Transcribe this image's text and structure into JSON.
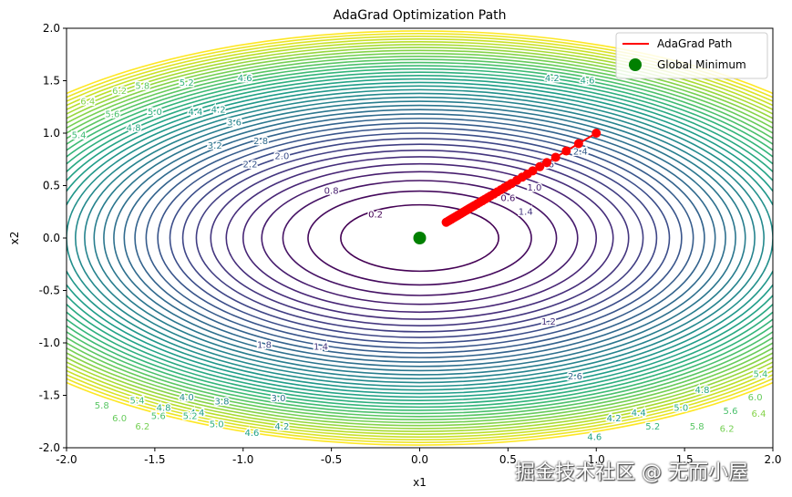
{
  "chart_data": {
    "type": "contour",
    "title": "AdaGrad Optimization Path",
    "xlabel": "x1",
    "ylabel": "x2",
    "xlim": [
      -2.0,
      2.0
    ],
    "ylim": [
      -2.0,
      2.0
    ],
    "xticks": [
      "-2.0",
      "-1.5",
      "-1.0",
      "-0.5",
      "0.0",
      "0.5",
      "1.0",
      "1.5",
      "2.0"
    ],
    "yticks": [
      "-2.0",
      "-1.5",
      "-1.0",
      "-0.5",
      "0.0",
      "0.5",
      "1.0",
      "1.5",
      "2.0"
    ],
    "contour_function": "x1^2 + 2*x2^2",
    "contour_levels": [
      0.2,
      0.4,
      0.6,
      0.8,
      1.0,
      1.2,
      1.4,
      1.6,
      1.8,
      2.0,
      2.2,
      2.4,
      2.6,
      2.8,
      3.0,
      3.2,
      3.4,
      3.6,
      3.8,
      4.0,
      4.2,
      4.4,
      4.6,
      4.8,
      5.0,
      5.2,
      5.4,
      5.6,
      5.8,
      6.0,
      6.2,
      6.4,
      6.6,
      6.8,
      7.0,
      7.2,
      7.4,
      7.6,
      7.8
    ],
    "colormap": "viridis",
    "contour_labels": [
      {
        "text": "0.2",
        "x": -0.25,
        "y": 0.22
      },
      {
        "text": "0.8",
        "x": -0.5,
        "y": 0.45
      },
      {
        "text": "0.6",
        "x": 0.5,
        "y": 0.38
      },
      {
        "text": "1.0",
        "x": 0.65,
        "y": 0.48
      },
      {
        "text": "1.4",
        "x": 0.6,
        "y": 0.25
      },
      {
        "text": "1.6",
        "x": 0.72,
        "y": 0.7
      },
      {
        "text": "2.0",
        "x": -0.78,
        "y": 0.78
      },
      {
        "text": "2.2",
        "x": -0.96,
        "y": 0.7
      },
      {
        "text": "2.8",
        "x": -0.9,
        "y": 0.92
      },
      {
        "text": "3.2",
        "x": -1.16,
        "y": 0.88
      },
      {
        "text": "3.6",
        "x": -1.05,
        "y": 1.1
      },
      {
        "text": "2.4",
        "x": 0.91,
        "y": 0.82
      },
      {
        "text": "4.2",
        "x": 0.75,
        "y": 1.52
      },
      {
        "text": "4.6",
        "x": 0.95,
        "y": 1.5
      },
      {
        "text": "4.6",
        "x": -0.99,
        "y": 1.52
      },
      {
        "text": "5.2",
        "x": -1.32,
        "y": 1.48
      },
      {
        "text": "4.4",
        "x": -1.27,
        "y": 1.2
      },
      {
        "text": "4.2",
        "x": -1.14,
        "y": 1.22
      },
      {
        "text": "5.0",
        "x": -1.5,
        "y": 1.2
      },
      {
        "text": "4.8",
        "x": -1.62,
        "y": 1.05
      },
      {
        "text": "5.6",
        "x": -1.74,
        "y": 1.18
      },
      {
        "text": "5.8",
        "x": -1.57,
        "y": 1.45
      },
      {
        "text": "6.2",
        "x": -1.7,
        "y": 1.4
      },
      {
        "text": "6.4",
        "x": -1.88,
        "y": 1.3
      },
      {
        "text": "5.4",
        "x": -1.93,
        "y": 0.98
      },
      {
        "text": "1.2",
        "x": 0.73,
        "y": -0.8
      },
      {
        "text": "1.8",
        "x": -0.88,
        "y": -1.02
      },
      {
        "text": "1.4",
        "x": -0.56,
        "y": -1.04
      },
      {
        "text": "2.6",
        "x": 0.88,
        "y": -1.32
      },
      {
        "text": "3.0",
        "x": -0.8,
        "y": -1.53
      },
      {
        "text": "3.8",
        "x": -1.12,
        "y": -1.56
      },
      {
        "text": "4.0",
        "x": -1.32,
        "y": -1.52
      },
      {
        "text": "4.4",
        "x": -1.26,
        "y": -1.67
      },
      {
        "text": "4.2",
        "x": -0.78,
        "y": -1.8
      },
      {
        "text": "4.6",
        "x": -0.95,
        "y": -1.86
      },
      {
        "text": "5.0",
        "x": -1.15,
        "y": -1.78
      },
      {
        "text": "5.2",
        "x": -1.3,
        "y": -1.7
      },
      {
        "text": "4.8",
        "x": -1.45,
        "y": -1.62
      },
      {
        "text": "5.4",
        "x": -1.6,
        "y": -1.55
      },
      {
        "text": "5.6",
        "x": -1.48,
        "y": -1.7
      },
      {
        "text": "5.8",
        "x": -1.8,
        "y": -1.6
      },
      {
        "text": "6.0",
        "x": -1.7,
        "y": -1.72
      },
      {
        "text": "6.2",
        "x": -1.57,
        "y": -1.8
      },
      {
        "text": "4.6",
        "x": 0.99,
        "y": -1.9
      },
      {
        "text": "4.2",
        "x": 1.1,
        "y": -1.72
      },
      {
        "text": "4.4",
        "x": 1.24,
        "y": -1.67
      },
      {
        "text": "5.0",
        "x": 1.48,
        "y": -1.62
      },
      {
        "text": "4.8",
        "x": 1.6,
        "y": -1.45
      },
      {
        "text": "5.2",
        "x": 1.32,
        "y": -1.8
      },
      {
        "text": "5.4",
        "x": 1.93,
        "y": -1.3
      },
      {
        "text": "5.6",
        "x": 1.76,
        "y": -1.65
      },
      {
        "text": "5.8",
        "x": 1.57,
        "y": -1.8
      },
      {
        "text": "6.0",
        "x": 1.9,
        "y": -1.52
      },
      {
        "text": "6.2",
        "x": 1.74,
        "y": -1.82
      },
      {
        "text": "6.4",
        "x": 1.92,
        "y": -1.68
      }
    ],
    "series": [
      {
        "name": "AdaGrad Path",
        "color": "#ff0000",
        "x": [
          1.0,
          0.9,
          0.83,
          0.77,
          0.72,
          0.68,
          0.64,
          0.61,
          0.58,
          0.55,
          0.52,
          0.5,
          0.48,
          0.46,
          0.44,
          0.42,
          0.4,
          0.385,
          0.37,
          0.355,
          0.34,
          0.325,
          0.31,
          0.3,
          0.29,
          0.28,
          0.27,
          0.26,
          0.25,
          0.24,
          0.23,
          0.22,
          0.21,
          0.2,
          0.19,
          0.18,
          0.17,
          0.16,
          0.15
        ],
        "y": [
          1.0,
          0.9,
          0.83,
          0.77,
          0.72,
          0.68,
          0.64,
          0.61,
          0.58,
          0.55,
          0.52,
          0.5,
          0.48,
          0.46,
          0.44,
          0.42,
          0.4,
          0.385,
          0.37,
          0.355,
          0.34,
          0.325,
          0.31,
          0.3,
          0.29,
          0.28,
          0.27,
          0.26,
          0.25,
          0.24,
          0.23,
          0.22,
          0.21,
          0.2,
          0.19,
          0.18,
          0.17,
          0.16,
          0.15
        ]
      },
      {
        "name": "Global Minimum",
        "color": "#008000",
        "x": [
          0.0
        ],
        "y": [
          0.0
        ]
      }
    ],
    "legend": {
      "placement": "top-right",
      "entries": [
        "AdaGrad Path",
        "Global Minimum"
      ]
    },
    "grid": false
  },
  "watermark": "掘金技术社区 @ 无而小屋"
}
